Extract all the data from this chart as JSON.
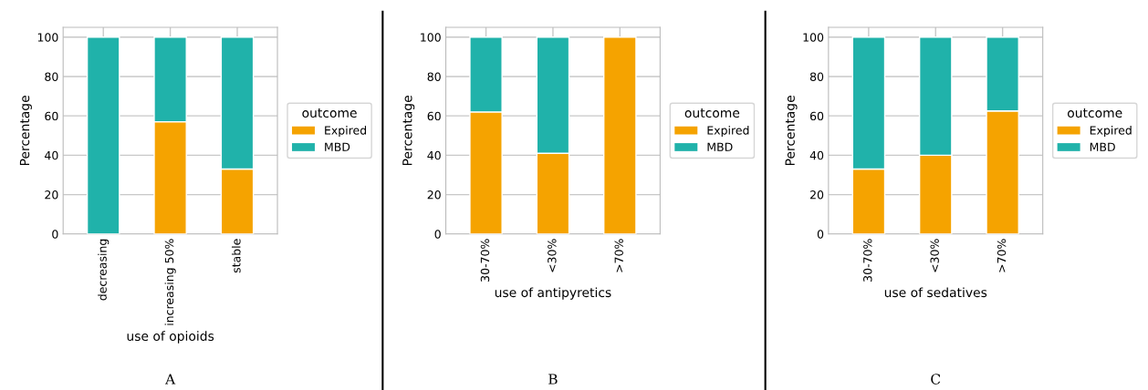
{
  "chart_data": [
    {
      "type": "bar",
      "stacked": true,
      "categories": [
        "decreasing",
        "increasing 50%",
        "stable"
      ],
      "xlabel": "use of opioids",
      "ylabel": "Percentage",
      "legend_title": "outcome",
      "legend": "right",
      "grid": true,
      "ylim": [
        0,
        105
      ],
      "yticks": [
        0,
        20,
        40,
        60,
        80,
        100
      ],
      "annotations": [
        "A"
      ],
      "series": [
        {
          "name": "Expired",
          "color": "#f5a300",
          "values": [
            0,
            57,
            33
          ]
        },
        {
          "name": "MBD",
          "color": "#20b2aa",
          "values": [
            100,
            43,
            67
          ]
        }
      ]
    },
    {
      "type": "bar",
      "stacked": true,
      "categories": [
        "30-70%",
        "<30%",
        ">70%"
      ],
      "xlabel": "use of antipyretics",
      "ylabel": "Percentage",
      "legend_title": "outcome",
      "legend": "right",
      "grid": true,
      "ylim": [
        0,
        105
      ],
      "yticks": [
        0,
        20,
        40,
        60,
        80,
        100
      ],
      "annotations": [
        "B"
      ],
      "series": [
        {
          "name": "Expired",
          "color": "#f5a300",
          "values": [
            62,
            41,
            100
          ]
        },
        {
          "name": "MBD",
          "color": "#20b2aa",
          "values": [
            38,
            59,
            0
          ]
        }
      ]
    },
    {
      "type": "bar",
      "stacked": true,
      "categories": [
        "30-70%",
        "<30%",
        ">70%"
      ],
      "xlabel": "use of sedatives",
      "ylabel": "Percentage",
      "legend_title": "outcome",
      "legend": "right",
      "grid": true,
      "ylim": [
        0,
        105
      ],
      "yticks": [
        0,
        20,
        40,
        60,
        80,
        100
      ],
      "annotations": [
        "C"
      ],
      "series": [
        {
          "name": "Expired",
          "color": "#f5a300",
          "values": [
            33,
            40,
            62.5
          ]
        },
        {
          "name": "MBD",
          "color": "#20b2aa",
          "values": [
            67,
            60,
            37.5
          ]
        }
      ]
    }
  ]
}
